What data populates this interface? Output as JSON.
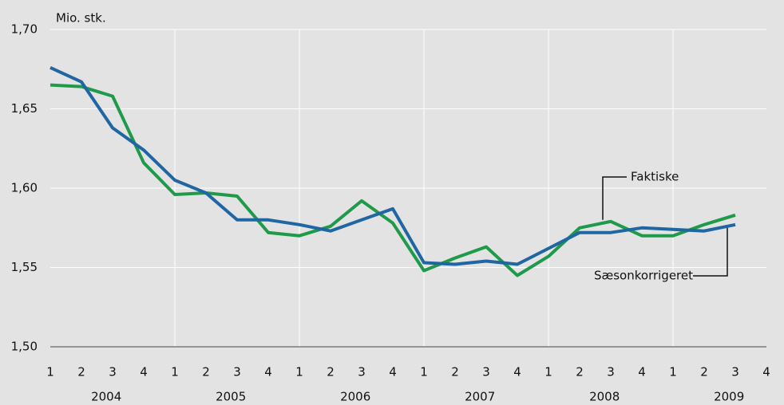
{
  "chart_data": {
    "type": "line",
    "y_label": "Mio. stk.",
    "categories": [
      "1",
      "2",
      "3",
      "4",
      "1",
      "2",
      "3",
      "4",
      "1",
      "2",
      "3",
      "4",
      "1",
      "2",
      "3",
      "4",
      "1",
      "2",
      "3",
      "4",
      "1",
      "2",
      "3",
      "4"
    ],
    "year_labels": [
      "2004",
      "2005",
      "2006",
      "2007",
      "2008",
      "2009"
    ],
    "series": [
      {
        "name": "Faktiske",
        "color": "#1f9a4b",
        "values": [
          1.665,
          1.664,
          1.658,
          1.616,
          1.596,
          1.597,
          1.595,
          1.572,
          1.57,
          1.576,
          1.592,
          1.578,
          1.548,
          1.556,
          1.563,
          1.545,
          1.557,
          1.575,
          1.579,
          1.57,
          1.57,
          1.577,
          1.583,
          null
        ]
      },
      {
        "name": "Sæsonkorrigeret",
        "color": "#1f66a3",
        "values": [
          1.676,
          1.667,
          1.638,
          1.624,
          1.605,
          1.597,
          1.58,
          1.58,
          1.577,
          1.573,
          1.58,
          1.587,
          1.553,
          1.552,
          1.554,
          1.552,
          1.562,
          1.572,
          1.572,
          1.575,
          1.574,
          1.573,
          1.577,
          null
        ]
      }
    ],
    "ylim": [
      1.5,
      1.7
    ],
    "yticks": [
      {
        "value": 1.5,
        "label": "1,50"
      },
      {
        "value": 1.55,
        "label": "1,55"
      },
      {
        "value": 1.6,
        "label": "1,60"
      },
      {
        "value": 1.65,
        "label": "1,65"
      },
      {
        "value": 1.7,
        "label": "1,70"
      }
    ],
    "grid": true
  }
}
